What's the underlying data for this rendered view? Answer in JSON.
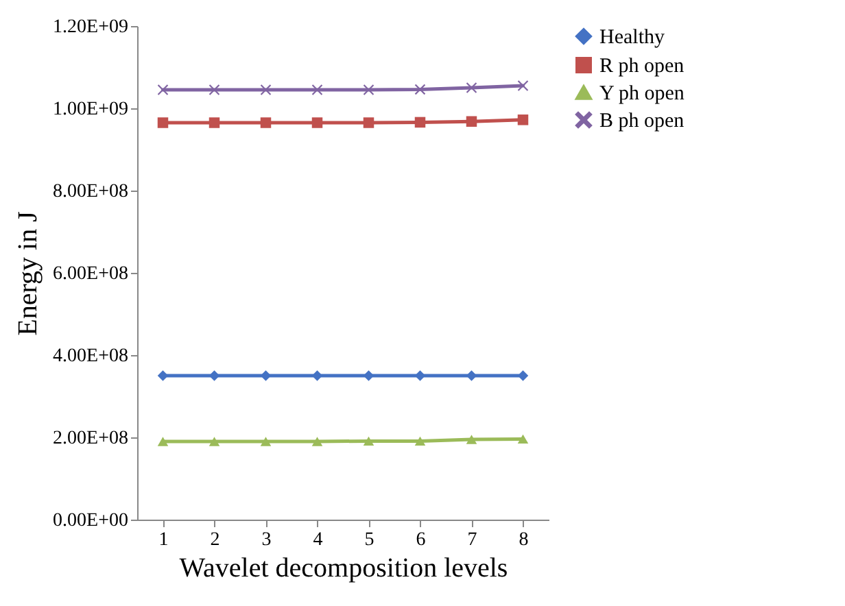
{
  "chart_data": {
    "type": "line",
    "xlabel": "Wavelet decomposition levels",
    "ylabel": "Energy in J",
    "categories": [
      "1",
      "2",
      "3",
      "4",
      "5",
      "6",
      "7",
      "8"
    ],
    "series": [
      {
        "name": "Healthy",
        "color": "#4472c4",
        "marker": "diamond",
        "values": [
          350000000,
          350000000,
          350000000,
          350000000,
          350000000,
          350000000,
          350000000,
          350000000
        ]
      },
      {
        "name": "R ph open",
        "color": "#c0504d",
        "marker": "square",
        "values": [
          965000000,
          965000000,
          965000000,
          965000000,
          965000000,
          966000000,
          968000000,
          972000000
        ]
      },
      {
        "name": "Y ph open",
        "color": "#9bbb59",
        "marker": "triangle",
        "values": [
          190000000,
          190000000,
          190000000,
          190000000,
          191000000,
          191000000,
          195000000,
          196000000
        ]
      },
      {
        "name": "B ph open",
        "color": "#8064a2",
        "marker": "cross",
        "values": [
          1045000000,
          1045000000,
          1045000000,
          1045000000,
          1045000000,
          1046000000,
          1050000000,
          1055000000
        ]
      }
    ],
    "ylim": [
      0,
      1200000000
    ],
    "yticks": [
      {
        "value": 0,
        "label": "0.00E+00"
      },
      {
        "value": 200000000,
        "label": "2.00E+08"
      },
      {
        "value": 400000000,
        "label": "4.00E+08"
      },
      {
        "value": 600000000,
        "label": "6.00E+08"
      },
      {
        "value": 800000000,
        "label": "8.00E+08"
      },
      {
        "value": 1000000000,
        "label": "1.00E+09"
      },
      {
        "value": 1200000000,
        "label": "1.20E+09"
      }
    ],
    "grid": false,
    "legend": "right",
    "line_style": "solid"
  }
}
